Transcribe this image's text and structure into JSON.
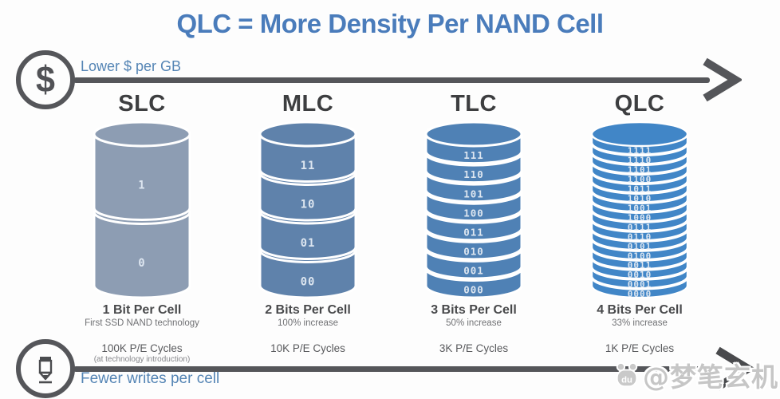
{
  "title": "QLC = More Density Per NAND Cell",
  "top_axis": {
    "icon": "dollar-sign",
    "glyph": "$",
    "label": "Lower $ per GB"
  },
  "bottom_axis": {
    "icon": "pencil",
    "label": "Fewer writes per cell"
  },
  "watermark": {
    "badge_text": "du",
    "text": "@梦笔玄机"
  },
  "colors": {
    "title_blue": "#4a7cbb",
    "axis_label_blue": "#5585b5",
    "arrow_gray": "#55565a",
    "heading_gray": "#3d3e40",
    "slc_cylinder": "#8d9db3",
    "mlc_cylinder": "#5f82ab",
    "tlc_cylinder": "#4f81b5",
    "qlc_cylinder": "#4186c7",
    "segment_label": "#dde6f0"
  },
  "columns": [
    {
      "id": "slc",
      "name": "SLC",
      "caption": "1 Bit Per Cell",
      "subcaption": "First SSD NAND technology",
      "pe_cycles": "100K P/E Cycles",
      "pe_note": "(at technology introduction)",
      "color": "#8d9db3",
      "bits_per_cell": 1,
      "segments": [
        "1",
        "0"
      ]
    },
    {
      "id": "mlc",
      "name": "MLC",
      "caption": "2 Bits Per Cell",
      "subcaption": "100% increase",
      "pe_cycles": "10K P/E Cycles",
      "pe_note": "",
      "color": "#5f82ab",
      "bits_per_cell": 2,
      "segments": [
        "11",
        "10",
        "01",
        "00"
      ]
    },
    {
      "id": "tlc",
      "name": "TLC",
      "caption": "3 Bits Per Cell",
      "subcaption": "50% increase",
      "pe_cycles": "3K P/E Cycles",
      "pe_note": "",
      "color": "#4f81b5",
      "bits_per_cell": 3,
      "segments": [
        "111",
        "110",
        "101",
        "100",
        "011",
        "010",
        "001",
        "000"
      ]
    },
    {
      "id": "qlc",
      "name": "QLC",
      "caption": "4 Bits Per Cell",
      "subcaption": "33% increase",
      "pe_cycles": "1K P/E Cycles",
      "pe_note": "",
      "color": "#4186c7",
      "bits_per_cell": 4,
      "segments": [
        "1111",
        "1110",
        "1101",
        "1100",
        "1011",
        "1010",
        "1001",
        "1000",
        "0111",
        "0110",
        "0101",
        "0100",
        "0011",
        "0010",
        "0001",
        "0000"
      ]
    }
  ]
}
